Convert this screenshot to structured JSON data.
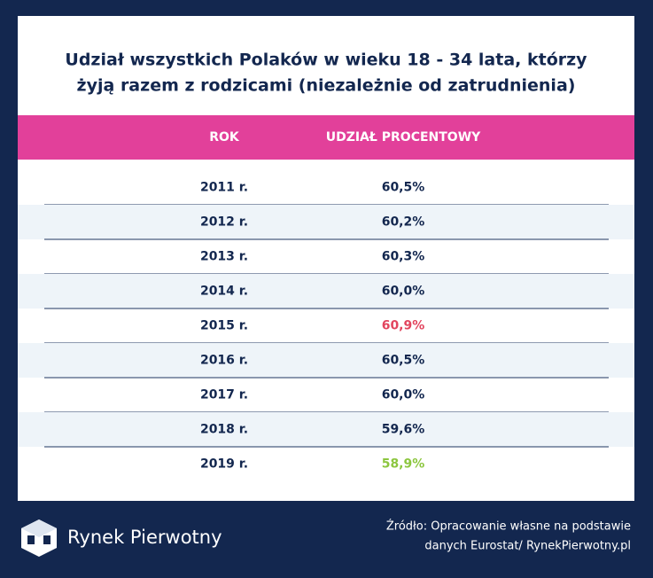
{
  "title": [
    "Udział wszystkich Polaków w wieku 18 - 34 lata, którzy",
    "żyją razem z rodzicami (niezależnie od zatrudnienia)"
  ],
  "table": {
    "header": [
      "ROK",
      "UDZIAŁ PROCENTOWY"
    ],
    "rows": [
      {
        "cells": [
          "2011 r.",
          "60,5%"
        ]
      },
      {
        "cells": [
          "2012 r.",
          "60,2%"
        ]
      },
      {
        "cells": [
          "2013 r.",
          "60,3%"
        ]
      },
      {
        "cells": [
          "2014 r.",
          "60,0%"
        ]
      },
      {
        "cells": [
          "2015 r.",
          "60,9%"
        ],
        "color": "#e2455e"
      },
      {
        "cells": [
          "2016 r.",
          "60,5%"
        ]
      },
      {
        "cells": [
          "2017 r.",
          "60,0%"
        ]
      },
      {
        "cells": [
          "2018 r.",
          "59,6%"
        ]
      },
      {
        "cells": [
          "2019 r.",
          "58,9%"
        ],
        "color": "#8cc63f"
      }
    ]
  },
  "footer": {
    "brand": "Rynek Pierwotny",
    "source": [
      "Źródło: Opracowanie własne na podstawie",
      "danych Eurostat/ RynekPierwotny.pl"
    ]
  }
}
